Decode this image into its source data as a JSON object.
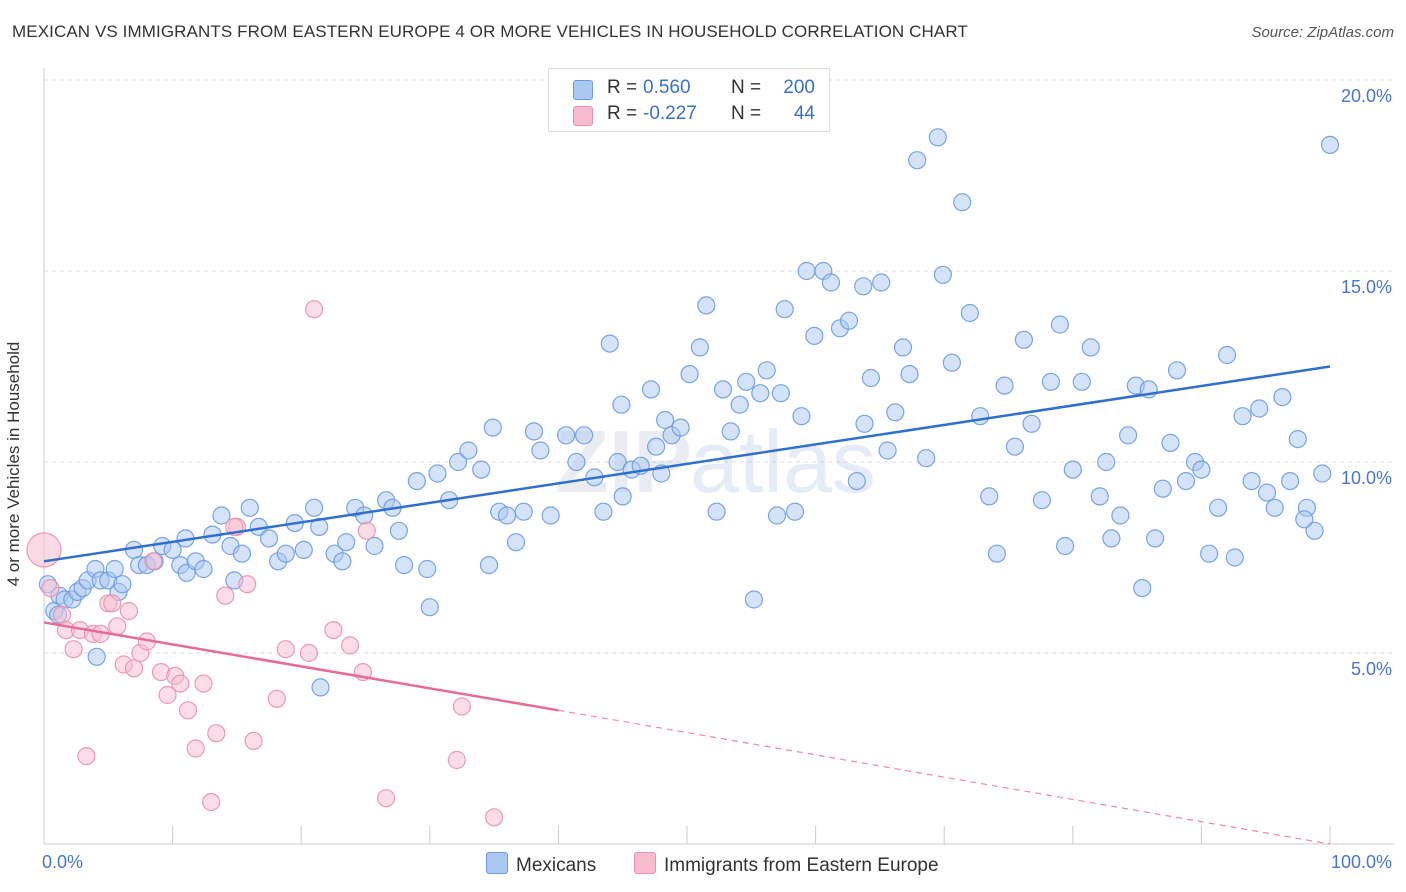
{
  "header": {
    "title": "MEXICAN VS IMMIGRANTS FROM EASTERN EUROPE 4 OR MORE VEHICLES IN HOUSEHOLD CORRELATION CHART",
    "source": "Source: ZipAtlas.com"
  },
  "watermark": {
    "zip": "ZIP",
    "atlas": "atlas"
  },
  "legend": {
    "rows": [
      {
        "r_label": "R =",
        "r_value": "0.560",
        "n_label": "N =",
        "n_value": "200",
        "color": "#aac8f0"
      },
      {
        "r_label": "R =",
        "r_value": "-0.227",
        "n_label": "N =",
        "n_value": "44",
        "color": "#f8bcd0"
      }
    ]
  },
  "chart_data": {
    "type": "scatter",
    "title": "MEXICAN VS IMMIGRANTS FROM EASTERN EUROPE 4 OR MORE VEHICLES IN HOUSEHOLD CORRELATION CHART",
    "xlabel": "",
    "ylabel": "4 or more Vehicles in Household",
    "xlim": [
      0,
      100
    ],
    "ylim": [
      0,
      20
    ],
    "x_tick_labels": [
      "0.0%",
      "100.0%"
    ],
    "y_ticks": [
      5,
      10,
      15,
      20
    ],
    "y_tick_labels": [
      "5.0%",
      "10.0%",
      "15.0%",
      "20.0%"
    ],
    "grid": true,
    "legend_position": "top-center",
    "series": [
      {
        "name": "Mexicans",
        "color": "#aac8f0",
        "edge": "#6d9be0",
        "trend": {
          "x": [
            0,
            100
          ],
          "y": [
            7.4,
            12.5
          ]
        },
        "points": [
          [
            0.3,
            6.8
          ],
          [
            0.8,
            6.1
          ],
          [
            1.2,
            6.5
          ],
          [
            1.6,
            6.4
          ],
          [
            2.2,
            6.4
          ],
          [
            2.6,
            6.6
          ],
          [
            3.0,
            6.7
          ],
          [
            3.4,
            6.9
          ],
          [
            4.0,
            7.2
          ],
          [
            4.4,
            6.9
          ],
          [
            5.0,
            6.9
          ],
          [
            5.5,
            7.2
          ],
          [
            5.8,
            6.6
          ],
          [
            6.1,
            6.8
          ],
          [
            7.0,
            7.7
          ],
          [
            7.4,
            7.3
          ],
          [
            8.0,
            7.3
          ],
          [
            8.6,
            7.4
          ],
          [
            9.2,
            7.8
          ],
          [
            10.0,
            7.7
          ],
          [
            10.6,
            7.3
          ],
          [
            11.1,
            7.1
          ],
          [
            11.8,
            7.4
          ],
          [
            12.4,
            7.2
          ],
          [
            13.1,
            8.1
          ],
          [
            13.8,
            8.6
          ],
          [
            14.5,
            7.8
          ],
          [
            14.8,
            6.9
          ],
          [
            15.4,
            7.6
          ],
          [
            16.0,
            8.8
          ],
          [
            16.7,
            8.3
          ],
          [
            17.5,
            8.0
          ],
          [
            18.2,
            7.4
          ],
          [
            18.8,
            7.6
          ],
          [
            19.5,
            8.4
          ],
          [
            20.2,
            7.7
          ],
          [
            21.0,
            8.8
          ],
          [
            21.4,
            8.3
          ],
          [
            22.6,
            7.6
          ],
          [
            23.2,
            7.4
          ],
          [
            23.5,
            7.9
          ],
          [
            24.2,
            8.8
          ],
          [
            24.9,
            8.6
          ],
          [
            25.7,
            7.8
          ],
          [
            26.6,
            9.0
          ],
          [
            27.1,
            8.8
          ],
          [
            27.6,
            8.2
          ],
          [
            28.0,
            7.3
          ],
          [
            29.0,
            9.5
          ],
          [
            29.8,
            7.2
          ],
          [
            30.6,
            9.7
          ],
          [
            31.5,
            9.0
          ],
          [
            32.2,
            10.0
          ],
          [
            33.0,
            10.3
          ],
          [
            34.0,
            9.8
          ],
          [
            34.6,
            7.3
          ],
          [
            35.4,
            8.7
          ],
          [
            36.0,
            8.6
          ],
          [
            36.7,
            7.9
          ],
          [
            37.3,
            8.7
          ],
          [
            38.1,
            10.8
          ],
          [
            38.6,
            10.3
          ],
          [
            39.4,
            8.6
          ],
          [
            40.6,
            10.7
          ],
          [
            41.4,
            10.0
          ],
          [
            42.0,
            10.7
          ],
          [
            42.8,
            9.6
          ],
          [
            43.5,
            8.7
          ],
          [
            44.0,
            13.1
          ],
          [
            44.6,
            10.0
          ],
          [
            45.0,
            9.1
          ],
          [
            45.7,
            9.8
          ],
          [
            46.4,
            9.9
          ],
          [
            47.2,
            11.9
          ],
          [
            47.6,
            10.4
          ],
          [
            48.3,
            11.1
          ],
          [
            48.8,
            10.7
          ],
          [
            49.5,
            10.9
          ],
          [
            50.2,
            12.3
          ],
          [
            51.0,
            13.0
          ],
          [
            51.5,
            14.1
          ],
          [
            52.3,
            8.7
          ],
          [
            52.8,
            11.9
          ],
          [
            53.4,
            10.8
          ],
          [
            54.1,
            11.5
          ],
          [
            54.6,
            12.1
          ],
          [
            55.2,
            6.4
          ],
          [
            55.7,
            11.8
          ],
          [
            56.2,
            12.4
          ],
          [
            57.0,
            8.6
          ],
          [
            57.6,
            14.0
          ],
          [
            58.4,
            8.7
          ],
          [
            58.9,
            11.2
          ],
          [
            59.3,
            15.0
          ],
          [
            59.9,
            13.3
          ],
          [
            60.6,
            15.0
          ],
          [
            61.2,
            14.7
          ],
          [
            61.9,
            13.5
          ],
          [
            62.6,
            13.7
          ],
          [
            63.2,
            9.5
          ],
          [
            63.7,
            14.6
          ],
          [
            64.3,
            12.2
          ],
          [
            65.1,
            14.7
          ],
          [
            65.6,
            10.3
          ],
          [
            66.2,
            11.3
          ],
          [
            66.8,
            13.0
          ],
          [
            67.3,
            12.3
          ],
          [
            67.9,
            17.9
          ],
          [
            68.6,
            10.1
          ],
          [
            69.5,
            18.5
          ],
          [
            69.9,
            14.9
          ],
          [
            70.6,
            12.6
          ],
          [
            71.4,
            16.8
          ],
          [
            72.0,
            13.9
          ],
          [
            72.8,
            11.2
          ],
          [
            73.5,
            9.1
          ],
          [
            74.1,
            7.6
          ],
          [
            74.7,
            12.0
          ],
          [
            75.5,
            10.4
          ],
          [
            76.2,
            13.2
          ],
          [
            76.8,
            11.0
          ],
          [
            77.6,
            9.0
          ],
          [
            78.3,
            12.1
          ],
          [
            79.0,
            13.6
          ],
          [
            79.4,
            7.8
          ],
          [
            80.0,
            9.8
          ],
          [
            80.7,
            12.1
          ],
          [
            81.4,
            13.0
          ],
          [
            82.1,
            9.1
          ],
          [
            82.6,
            10.0
          ],
          [
            83.0,
            8.0
          ],
          [
            83.7,
            8.6
          ],
          [
            84.3,
            10.7
          ],
          [
            84.9,
            12.0
          ],
          [
            85.4,
            6.7
          ],
          [
            85.9,
            11.9
          ],
          [
            86.4,
            8.0
          ],
          [
            87.0,
            9.3
          ],
          [
            87.6,
            10.5
          ],
          [
            88.1,
            12.4
          ],
          [
            88.8,
            9.5
          ],
          [
            89.5,
            10.0
          ],
          [
            90.0,
            9.8
          ],
          [
            90.6,
            7.6
          ],
          [
            91.3,
            8.8
          ],
          [
            92.0,
            12.8
          ],
          [
            92.6,
            7.5
          ],
          [
            93.2,
            11.2
          ],
          [
            93.9,
            9.5
          ],
          [
            94.5,
            11.4
          ],
          [
            95.1,
            9.2
          ],
          [
            95.7,
            8.8
          ],
          [
            96.3,
            11.7
          ],
          [
            96.9,
            9.5
          ],
          [
            97.5,
            10.6
          ],
          [
            98.2,
            8.8
          ],
          [
            98.8,
            8.2
          ],
          [
            99.4,
            9.7
          ],
          [
            100.0,
            18.3
          ],
          [
            1.1,
            6.0
          ],
          [
            4.1,
            4.9
          ],
          [
            21.5,
            4.1
          ],
          [
            30.0,
            6.2
          ],
          [
            34.9,
            10.9
          ],
          [
            11.0,
            8.0
          ],
          [
            44.9,
            11.5
          ],
          [
            48.0,
            9.7
          ],
          [
            57.3,
            11.8
          ],
          [
            63.8,
            11.0
          ],
          [
            98.0,
            8.5
          ]
        ]
      },
      {
        "name": "Immigrants from Eastern Europe",
        "color": "#f8bcd0",
        "edge": "#e890ad",
        "trend": {
          "x": [
            0,
            40
          ],
          "y": [
            5.8,
            3.5
          ],
          "dashed_to": [
            100,
            0
          ]
        },
        "points": [
          [
            0.0,
            7.7
          ],
          [
            0.5,
            6.7
          ],
          [
            1.4,
            6.0
          ],
          [
            1.7,
            5.6
          ],
          [
            2.3,
            5.1
          ],
          [
            2.8,
            5.6
          ],
          [
            3.3,
            2.3
          ],
          [
            3.8,
            5.5
          ],
          [
            4.4,
            5.5
          ],
          [
            5.0,
            6.3
          ],
          [
            5.3,
            6.3
          ],
          [
            5.7,
            5.7
          ],
          [
            6.2,
            4.7
          ],
          [
            6.6,
            6.1
          ],
          [
            7.0,
            4.6
          ],
          [
            7.5,
            5.0
          ],
          [
            8.0,
            5.3
          ],
          [
            8.5,
            7.4
          ],
          [
            9.1,
            4.5
          ],
          [
            9.6,
            3.9
          ],
          [
            10.2,
            4.4
          ],
          [
            10.6,
            4.2
          ],
          [
            11.2,
            3.5
          ],
          [
            11.8,
            2.5
          ],
          [
            12.4,
            4.2
          ],
          [
            13.0,
            1.1
          ],
          [
            13.4,
            2.9
          ],
          [
            14.1,
            6.5
          ],
          [
            15.0,
            8.3
          ],
          [
            15.8,
            6.8
          ],
          [
            16.3,
            2.7
          ],
          [
            18.1,
            3.8
          ],
          [
            18.8,
            5.1
          ],
          [
            20.6,
            5.0
          ],
          [
            21.0,
            14.0
          ],
          [
            22.5,
            5.6
          ],
          [
            23.8,
            5.2
          ],
          [
            24.8,
            4.5
          ],
          [
            25.1,
            8.2
          ],
          [
            26.6,
            1.2
          ],
          [
            32.5,
            3.6
          ],
          [
            32.1,
            2.2
          ],
          [
            35.0,
            0.7
          ],
          [
            14.8,
            8.3
          ]
        ]
      }
    ]
  },
  "bottom_legend": {
    "items": [
      {
        "label": "Mexicans",
        "color": "#aac8f0"
      },
      {
        "label": "Immigrants from Eastern Europe",
        "color": "#f8bcd0"
      }
    ]
  }
}
